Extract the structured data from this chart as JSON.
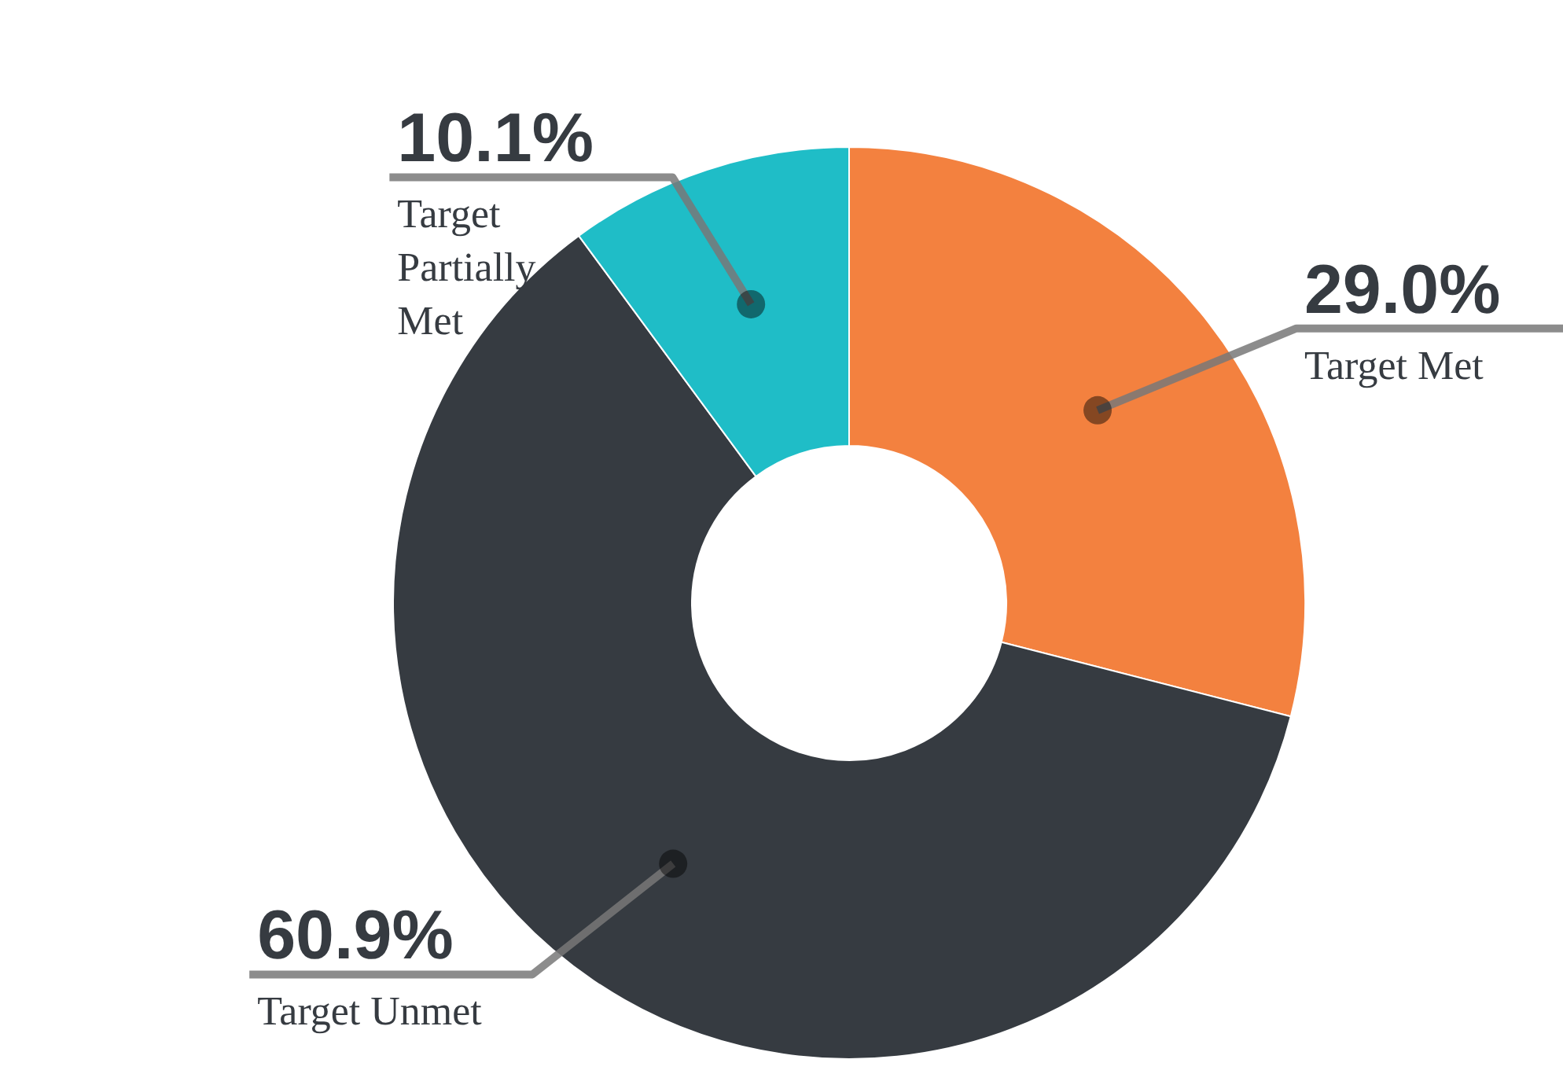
{
  "chart_data": {
    "type": "donut",
    "categories": [
      "Target Met",
      "Target Unmet",
      "Target Partially Met"
    ],
    "values": [
      29.0,
      60.9,
      10.1
    ],
    "colors": [
      "#f3813f",
      "#363b41",
      "#1fbdc7"
    ],
    "value_labels": [
      "29.0%",
      "60.9%",
      "10.1%"
    ],
    "legend": false
  }
}
